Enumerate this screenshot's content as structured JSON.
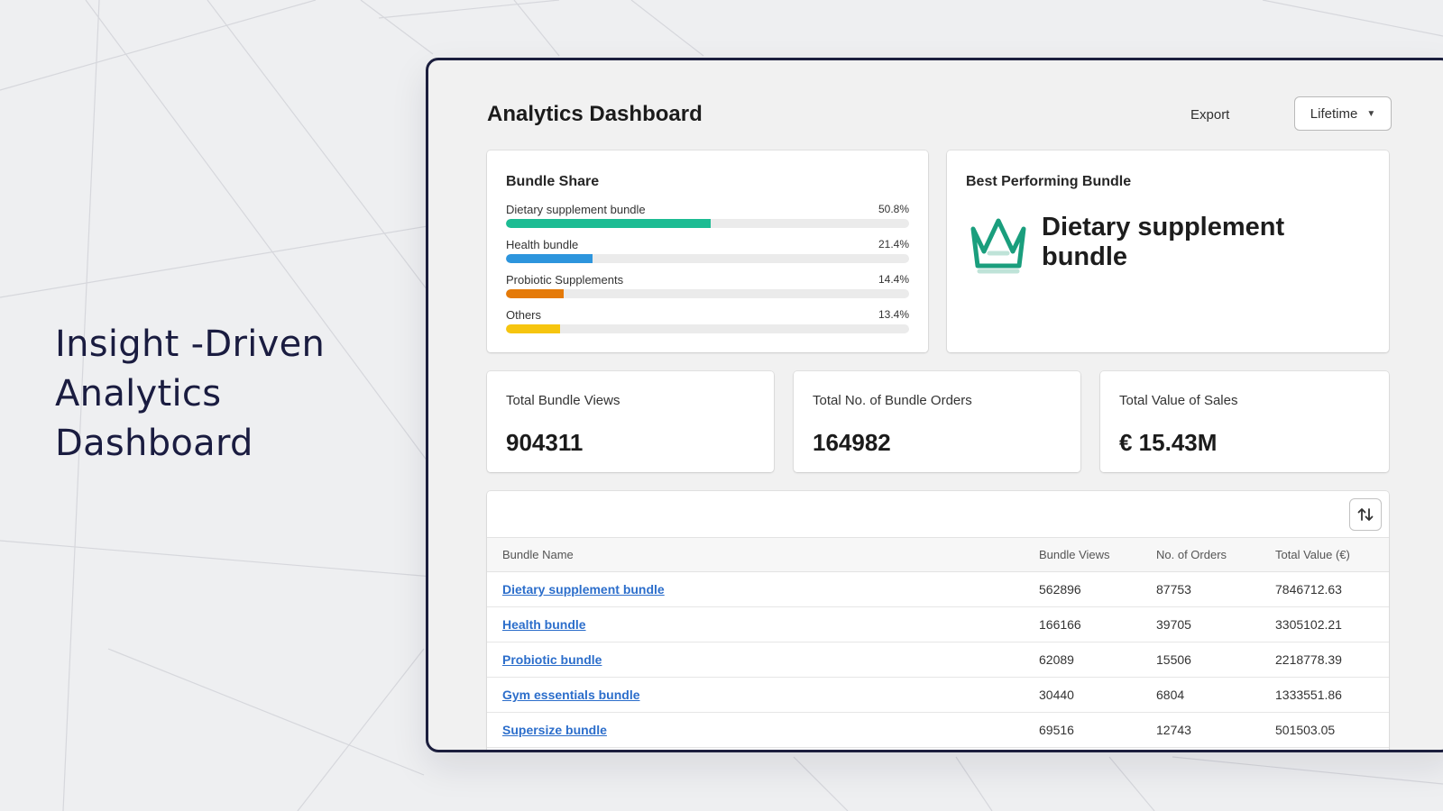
{
  "hero": {
    "lines": [
      "Insight -Driven",
      "Analytics",
      "Dashboard"
    ]
  },
  "dashboard": {
    "title": "Analytics Dashboard",
    "export_label": "Export",
    "range": {
      "selected": "Lifetime"
    }
  },
  "bundle_share": {
    "title": "Bundle Share",
    "items": [
      {
        "label": "Dietary supplement bundle",
        "pct_text": "50.8%",
        "fraction": 0.508,
        "color": "#1cbc93"
      },
      {
        "label": "Health bundle",
        "pct_text": "21.4%",
        "fraction": 0.214,
        "color": "#2d95dd"
      },
      {
        "label": "Probiotic Supplements",
        "pct_text": "14.4%",
        "fraction": 0.144,
        "color": "#e57a08"
      },
      {
        "label": "Others",
        "pct_text": "13.4%",
        "fraction": 0.134,
        "color": "#f6c50f"
      }
    ]
  },
  "best_bundle": {
    "title": "Best Performing Bundle",
    "name": "Dietary supplement bundle",
    "icon": "crown-icon",
    "icon_color": "#1a9e7d"
  },
  "stats": [
    {
      "label": "Total Bundle Views",
      "value": "904311"
    },
    {
      "label": "Total No. of Bundle Orders",
      "value": "164982"
    },
    {
      "label": "Total Value of Sales",
      "value": "€ 15.43M"
    }
  ],
  "table": {
    "sort_icon": "sort-arrows-icon",
    "columns": [
      "Bundle Name",
      "Bundle Views",
      "No. of Orders",
      "Total Value (€)"
    ],
    "rows": [
      {
        "name": "Dietary supplement bundle",
        "views": "562896",
        "orders": "87753",
        "value": "7846712.63"
      },
      {
        "name": "Health bundle",
        "views": "166166",
        "orders": "39705",
        "value": "3305102.21"
      },
      {
        "name": "Probiotic bundle",
        "views": "62089",
        "orders": "15506",
        "value": "2218778.39"
      },
      {
        "name": "Gym essentials bundle",
        "views": "30440",
        "orders": "6804",
        "value": "1333551.86"
      },
      {
        "name": "Supersize bundle",
        "views": "69516",
        "orders": "12743",
        "value": "501503.05"
      }
    ]
  }
}
